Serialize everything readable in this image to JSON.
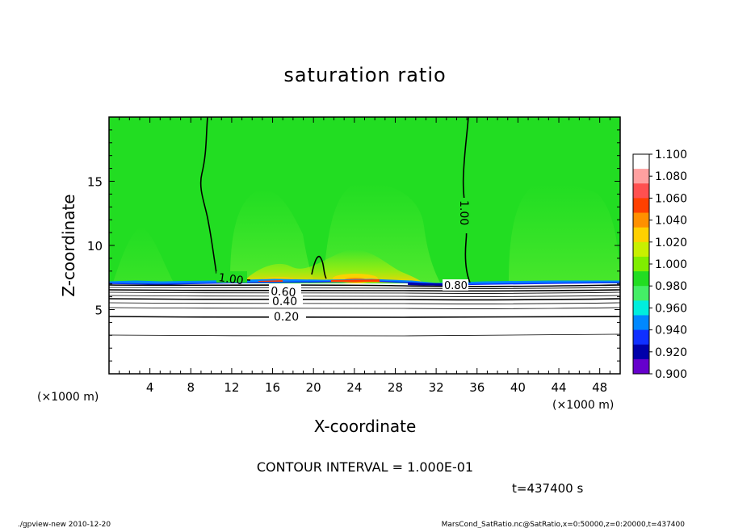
{
  "chart_data": {
    "type": "heatmap",
    "title": "saturation ratio",
    "xlabel": "X-coordinate",
    "ylabel": "Z-coordinate",
    "x_unit_left": "(×1000 m)",
    "x_unit_right": "(×1000 m)",
    "xlim": [
      0,
      50
    ],
    "ylim": [
      0,
      20
    ],
    "x_ticks": [
      4,
      8,
      12,
      16,
      20,
      24,
      28,
      32,
      36,
      40,
      44,
      48
    ],
    "y_ticks": [
      5,
      10,
      15
    ],
    "colorbar": {
      "levels": [
        "1.100",
        "1.080",
        "1.060",
        "1.040",
        "1.020",
        "1.000",
        "0.980",
        "0.960",
        "0.940",
        "0.920",
        "0.900"
      ],
      "colors": [
        "#ffffff",
        "#ffa0a0",
        "#ff5050",
        "#ff4000",
        "#ff9000",
        "#ffd000",
        "#c8f000",
        "#80ee00",
        "#22dd22",
        "#44ee66",
        "#00eedd",
        "#0088ff",
        "#1030ff",
        "#0000aa",
        "#6600cc"
      ]
    },
    "field_description": {
      "upper_region_value_approx": 1.0,
      "boundary_height_km": 7.2,
      "lower_region": "below ~7 km values decrease from about 0.9 to near 0"
    },
    "contour_labels": [
      {
        "text": "1.00",
        "x": 14.5,
        "y": 7.6
      },
      {
        "text": "1.00",
        "x": 35.0,
        "y": 14.0
      },
      {
        "text": "0.60",
        "x": 20.0,
        "y": 6.7
      },
      {
        "text": "0.40",
        "x": 20.0,
        "y": 5.7
      },
      {
        "text": "0.20",
        "x": 20.0,
        "y": 4.5
      },
      {
        "text": "0.80",
        "x": 33.5,
        "y": 6.9
      }
    ],
    "contour_interval_text": "CONTOUR INTERVAL = 1.000E-01",
    "time_text": "t=437400 s"
  },
  "footer": {
    "left": "./gpview-new  2010-12-20",
    "right": "MarsCond_SatRatio.nc@SatRatio,x=0:50000,z=0:20000,t=437400"
  },
  "colors": {
    "background": "#ffffff",
    "field_green": "#22dd22",
    "axis": "#000000"
  }
}
